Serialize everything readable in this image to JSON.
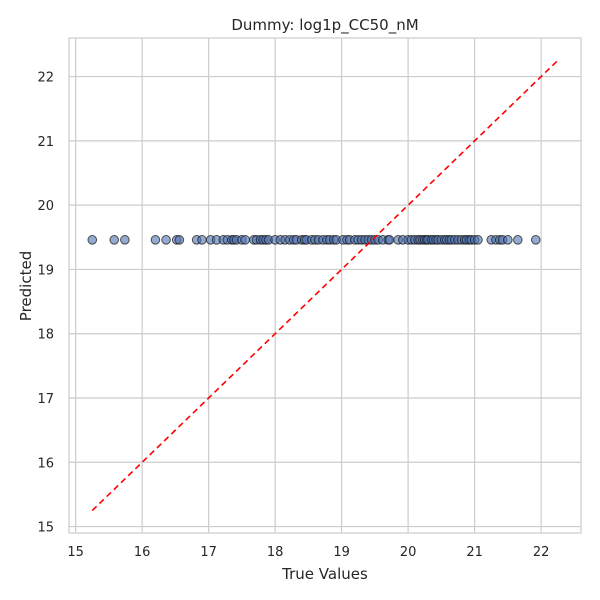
{
  "chart_data": {
    "type": "scatter",
    "title": "Dummy: log1p_CC50_nM",
    "xlabel": "True Values",
    "ylabel": "Predicted",
    "xlim": [
      14.9,
      22.6
    ],
    "ylim": [
      14.9,
      22.6
    ],
    "xticks": [
      15,
      16,
      17,
      18,
      19,
      20,
      21,
      22
    ],
    "yticks": [
      15,
      16,
      17,
      18,
      19,
      20,
      21,
      22
    ],
    "grid": true,
    "legend": "none",
    "colors": {
      "point_fill": "#4c72b0",
      "point_edge": "#1a1a1a",
      "reference_line": "#ff0000",
      "grid": "#cccccc",
      "background": "#ffffff"
    },
    "predicted_value": 19.46,
    "reference_line": {
      "from": [
        15.25,
        15.25
      ],
      "to": [
        22.25,
        22.25
      ],
      "style": "dashed"
    },
    "x": [
      15.25,
      15.58,
      15.74,
      16.2,
      16.36,
      16.52,
      16.56,
      16.82,
      16.9,
      17.03,
      17.12,
      17.22,
      17.28,
      17.35,
      17.38,
      17.42,
      17.5,
      17.55,
      17.68,
      17.72,
      17.78,
      17.82,
      17.86,
      17.9,
      18.0,
      18.08,
      18.15,
      18.22,
      18.28,
      18.32,
      18.4,
      18.44,
      18.47,
      18.55,
      18.6,
      18.65,
      18.72,
      18.78,
      18.82,
      18.88,
      18.92,
      19.02,
      19.08,
      19.12,
      19.2,
      19.25,
      19.3,
      19.35,
      19.4,
      19.45,
      19.5,
      19.55,
      19.62,
      19.7,
      19.72,
      19.85,
      19.92,
      20.0,
      20.05,
      20.1,
      20.15,
      20.18,
      20.22,
      20.25,
      20.28,
      20.3,
      20.35,
      20.38,
      20.42,
      20.45,
      20.5,
      20.55,
      20.58,
      20.62,
      20.65,
      20.7,
      20.75,
      20.8,
      20.85,
      20.88,
      20.92,
      20.95,
      21.0,
      21.05,
      21.25,
      21.32,
      21.38,
      21.42,
      21.5,
      21.65,
      21.92
    ]
  }
}
